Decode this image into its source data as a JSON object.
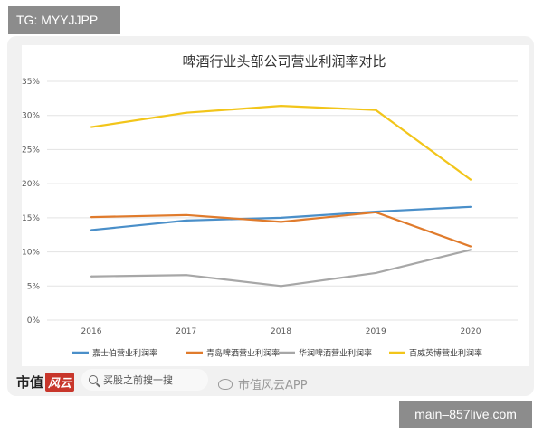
{
  "tg_label": "TG: MYYJJPP",
  "site_label": "main–857live.com",
  "footer": {
    "brand_text": "市值",
    "brand_mark": "风云",
    "search_text": "买股之前搜一搜",
    "weibo_text": "市值风云APP"
  },
  "chart_data": {
    "type": "line",
    "title": "啤酒行业头部公司营业利润率对比",
    "xlabel": "",
    "ylabel": "",
    "categories": [
      "2016",
      "2017",
      "2018",
      "2019",
      "2020"
    ],
    "y_ticks": [
      "0%",
      "5%",
      "10%",
      "15%",
      "20%",
      "25%",
      "30%",
      "35%"
    ],
    "ylim": [
      0,
      35
    ],
    "grid": true,
    "legend_position": "bottom",
    "series": [
      {
        "name": "嘉士伯营业利润率",
        "color": "#4a8fc9",
        "values": [
          13.2,
          14.6,
          15.0,
          15.9,
          16.6
        ]
      },
      {
        "name": "青岛啤酒营业利润率",
        "color": "#e07b2c",
        "values": [
          15.1,
          15.4,
          14.4,
          15.8,
          10.8
        ]
      },
      {
        "name": "华润啤酒营业利润率",
        "color": "#a7a7a7",
        "values": [
          6.4,
          6.6,
          5.0,
          6.9,
          10.3
        ]
      },
      {
        "name": "百威英博营业利润率",
        "color": "#f2c51a",
        "values": [
          28.3,
          30.4,
          31.4,
          30.8,
          20.6
        ]
      }
    ]
  }
}
